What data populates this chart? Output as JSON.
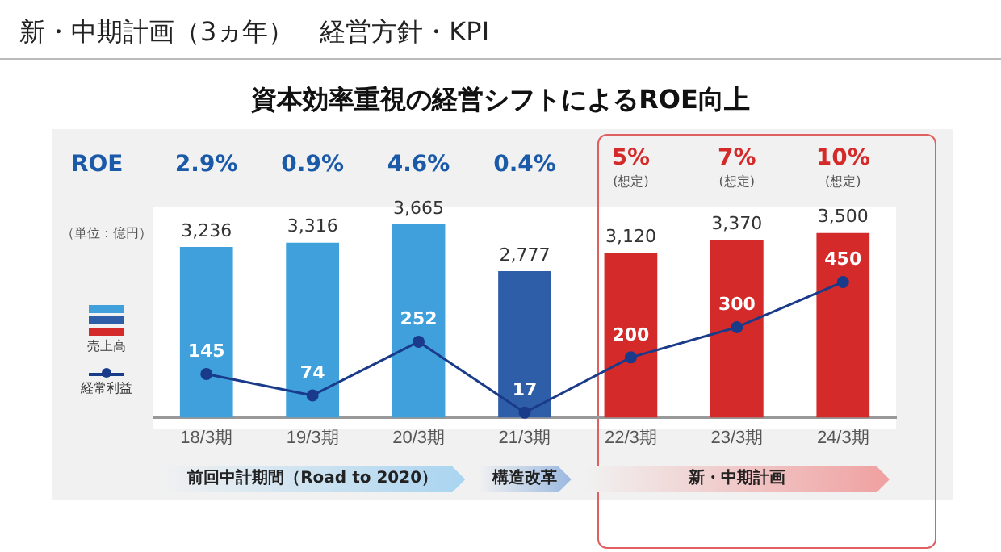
{
  "chart_data": {
    "type": "bar",
    "title": "資本効率重視の経営シフトによるROE向上",
    "categories": [
      "18/3期",
      "19/3期",
      "20/3期",
      "21/3期",
      "22/3期",
      "23/3期",
      "24/3期"
    ],
    "series": [
      {
        "name": "売上高",
        "colors": [
          "#3fa0dc",
          "#3fa0dc",
          "#3fa0dc",
          "#2f5ea8",
          "#d42a2a",
          "#d42a2a",
          "#d42a2a"
        ],
        "values": [
          3236,
          3316,
          3665,
          2777,
          3120,
          3370,
          3500
        ],
        "value_labels": [
          "3,236",
          "3,316",
          "3,665",
          "2,777",
          "3,120",
          "3,370",
          "3,500"
        ]
      },
      {
        "name": "経常利益",
        "type": "line",
        "axis": "y2",
        "color": "#1a3a8a",
        "marker": "circle",
        "values": [
          145,
          74,
          252,
          17,
          200,
          300,
          450
        ],
        "value_labels": [
          "145",
          "74",
          "252",
          "17",
          "200",
          "300",
          "450"
        ]
      }
    ],
    "tick_labels": "x",
    "grid": false,
    "legend": "left",
    "annotations": [
      "新・中期計画（3ヵ年）　経営方針・KPI",
      "ROE",
      "（単位：億円）",
      "前回中計期間（Road to 2020）",
      "構造改革",
      "新・中期計画",
      "2.9%",
      "0.9%",
      "4.6%",
      "0.4%",
      "5%",
      "7%",
      "10%",
      "(想定)",
      "(想定)",
      "(想定)"
    ]
  }
}
